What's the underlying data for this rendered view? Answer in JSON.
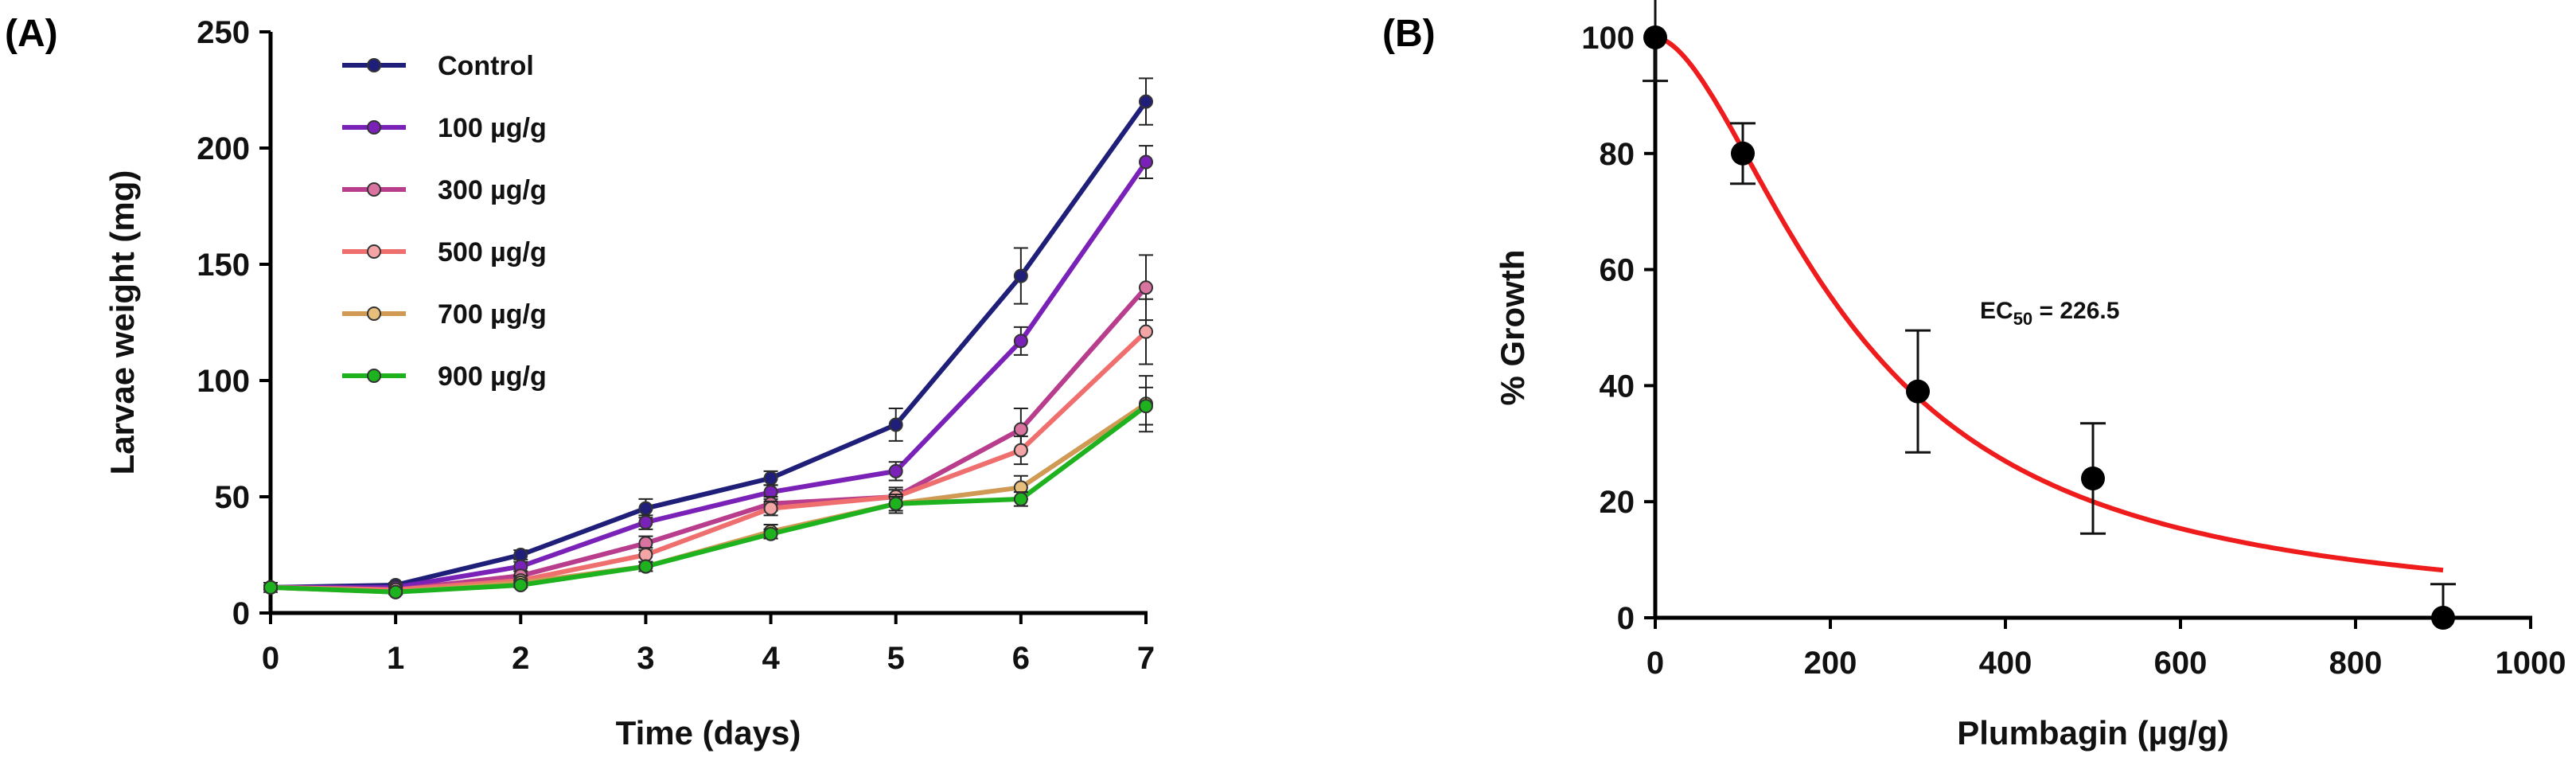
{
  "panels": {
    "A": {
      "label": "(A)"
    },
    "B": {
      "label": "(B)"
    }
  },
  "chart_data": [
    {
      "type": "line",
      "panel": "A",
      "title": "",
      "xlabel": "Time (days)",
      "ylabel": "Larvae weight (mg)",
      "xlim": [
        0,
        7
      ],
      "ylim": [
        0,
        250
      ],
      "x_ticks": [
        0,
        1,
        2,
        3,
        4,
        5,
        6,
        7
      ],
      "y_ticks": [
        0,
        50,
        100,
        150,
        200,
        250
      ],
      "grid": false,
      "legend": "top-left",
      "x": [
        0,
        1,
        2,
        3,
        4,
        5,
        6,
        7
      ],
      "series": [
        {
          "name": "Control",
          "color": "#1f1f7a",
          "marker_fill": "#1f1f7a",
          "values": [
            11,
            12,
            25,
            45,
            58,
            81,
            145,
            220
          ],
          "errors": [
            2,
            1,
            2,
            4,
            3,
            7,
            12,
            10
          ]
        },
        {
          "name": "100 µg/g",
          "color": "#7a22b8",
          "marker_fill": "#7a22b8",
          "values": [
            11,
            11,
            20,
            39,
            52,
            61,
            117,
            194
          ],
          "errors": [
            1,
            1,
            2,
            3,
            3,
            4,
            6,
            7
          ]
        },
        {
          "name": "300 µg/g",
          "color": "#b83d8c",
          "marker_fill": "#d9739f",
          "values": [
            11,
            10,
            16,
            30,
            47,
            50,
            79,
            140
          ],
          "errors": [
            1,
            1,
            2,
            3,
            3,
            4,
            9,
            14
          ]
        },
        {
          "name": "500 µg/g",
          "color": "#ef6f6f",
          "marker_fill": "#f3a5a5",
          "values": [
            11,
            10,
            14,
            25,
            45,
            50,
            70,
            121
          ],
          "errors": [
            1,
            1,
            2,
            3,
            3,
            3,
            6,
            14
          ]
        },
        {
          "name": "700 µg/g",
          "color": "#d19a54",
          "marker_fill": "#e6bf7d",
          "values": [
            11,
            9,
            13,
            20,
            35,
            47,
            54,
            90
          ],
          "errors": [
            1,
            1,
            1,
            2,
            3,
            4,
            5,
            12
          ]
        },
        {
          "name": "900 µg/g",
          "color": "#1eb21e",
          "marker_fill": "#1eb21e",
          "values": [
            11,
            9,
            12,
            20,
            34,
            47,
            49,
            89
          ],
          "errors": [
            1,
            1,
            1,
            2,
            2,
            3,
            3,
            8
          ]
        }
      ]
    },
    {
      "type": "scatter",
      "panel": "B",
      "title": "",
      "xlabel": "Plumbagin (µg/g)",
      "ylabel": "% Growth",
      "xlim": [
        0,
        1000
      ],
      "ylim": [
        0,
        100
      ],
      "x_ticks": [
        0,
        200,
        400,
        600,
        800,
        1000
      ],
      "y_ticks": [
        0,
        20,
        40,
        60,
        80,
        100
      ],
      "grid": false,
      "points": {
        "x": [
          0,
          100,
          300,
          500,
          900
        ],
        "y": [
          100,
          80,
          39,
          24,
          0
        ],
        "errors": [
          7.5,
          5.2,
          10.5,
          9.5,
          5.8
        ],
        "color": "#000000"
      },
      "fit": {
        "color": "#ee1c1c",
        "ec50": 226.5,
        "hill": 1.75,
        "top": 100,
        "bottom": 0,
        "x_range": [
          0,
          900
        ]
      },
      "annotation": {
        "prefix": "EC",
        "subscript": "50",
        "suffix": " = 226.5"
      }
    }
  ]
}
